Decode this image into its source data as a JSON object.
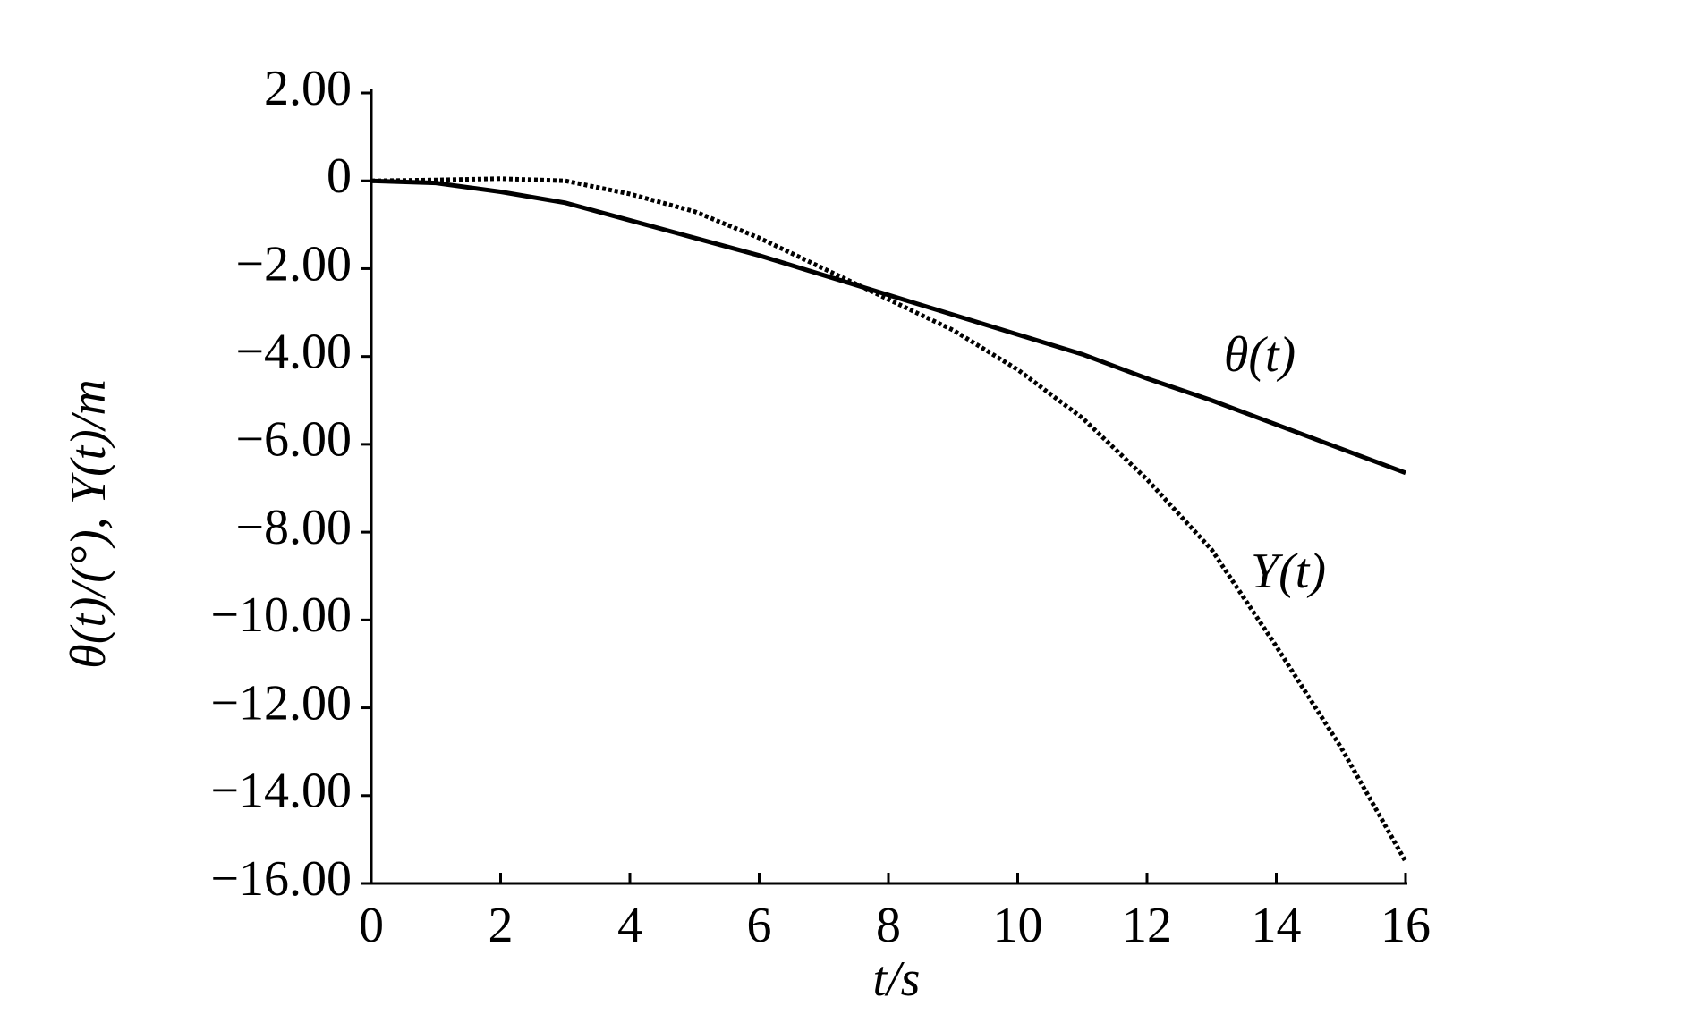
{
  "chart_data": {
    "type": "line",
    "xlabel": "t/s",
    "ylabel": "θ(t)/(°), Y(t)/m",
    "x": [
      0,
      1,
      2,
      3,
      4,
      5,
      6,
      7,
      8,
      9,
      10,
      11,
      12,
      13,
      14,
      15,
      16
    ],
    "series": [
      {
        "name": "θ(t)",
        "color": "#000000",
        "dash": "solid",
        "values": [
          0,
          -0.05,
          -0.25,
          -0.5,
          -0.9,
          -1.3,
          -1.7,
          -2.15,
          -2.6,
          -3.05,
          -3.5,
          -3.95,
          -4.5,
          -5.0,
          -5.55,
          -6.1,
          -6.65
        ]
      },
      {
        "name": "Y(t)",
        "color": "#000000",
        "dash": "dotted",
        "values": [
          0,
          0.02,
          0.05,
          0,
          -0.3,
          -0.7,
          -1.3,
          -2.0,
          -2.7,
          -3.4,
          -4.3,
          -5.4,
          -6.8,
          -8.4,
          -10.6,
          -12.9,
          -15.5
        ]
      }
    ],
    "xlim": [
      0,
      16
    ],
    "xticks": [
      0,
      2,
      4,
      6,
      8,
      10,
      12,
      14,
      16
    ],
    "ylim": [
      -16,
      2
    ],
    "yticks": [
      {
        "value": 2,
        "label": "2.00"
      },
      0,
      {
        "value": -2,
        "label": "−2.00"
      },
      {
        "value": -4,
        "label": "−4.00"
      },
      {
        "value": -6,
        "label": "−6.00"
      },
      {
        "value": -8,
        "label": "−8.00"
      },
      {
        "value": -10,
        "label": "−10.00"
      },
      {
        "value": -12,
        "label": "−12.00"
      },
      {
        "value": -14,
        "label": "−14.00"
      },
      {
        "value": -16,
        "label": "−16.00"
      }
    ],
    "grid": false
  }
}
